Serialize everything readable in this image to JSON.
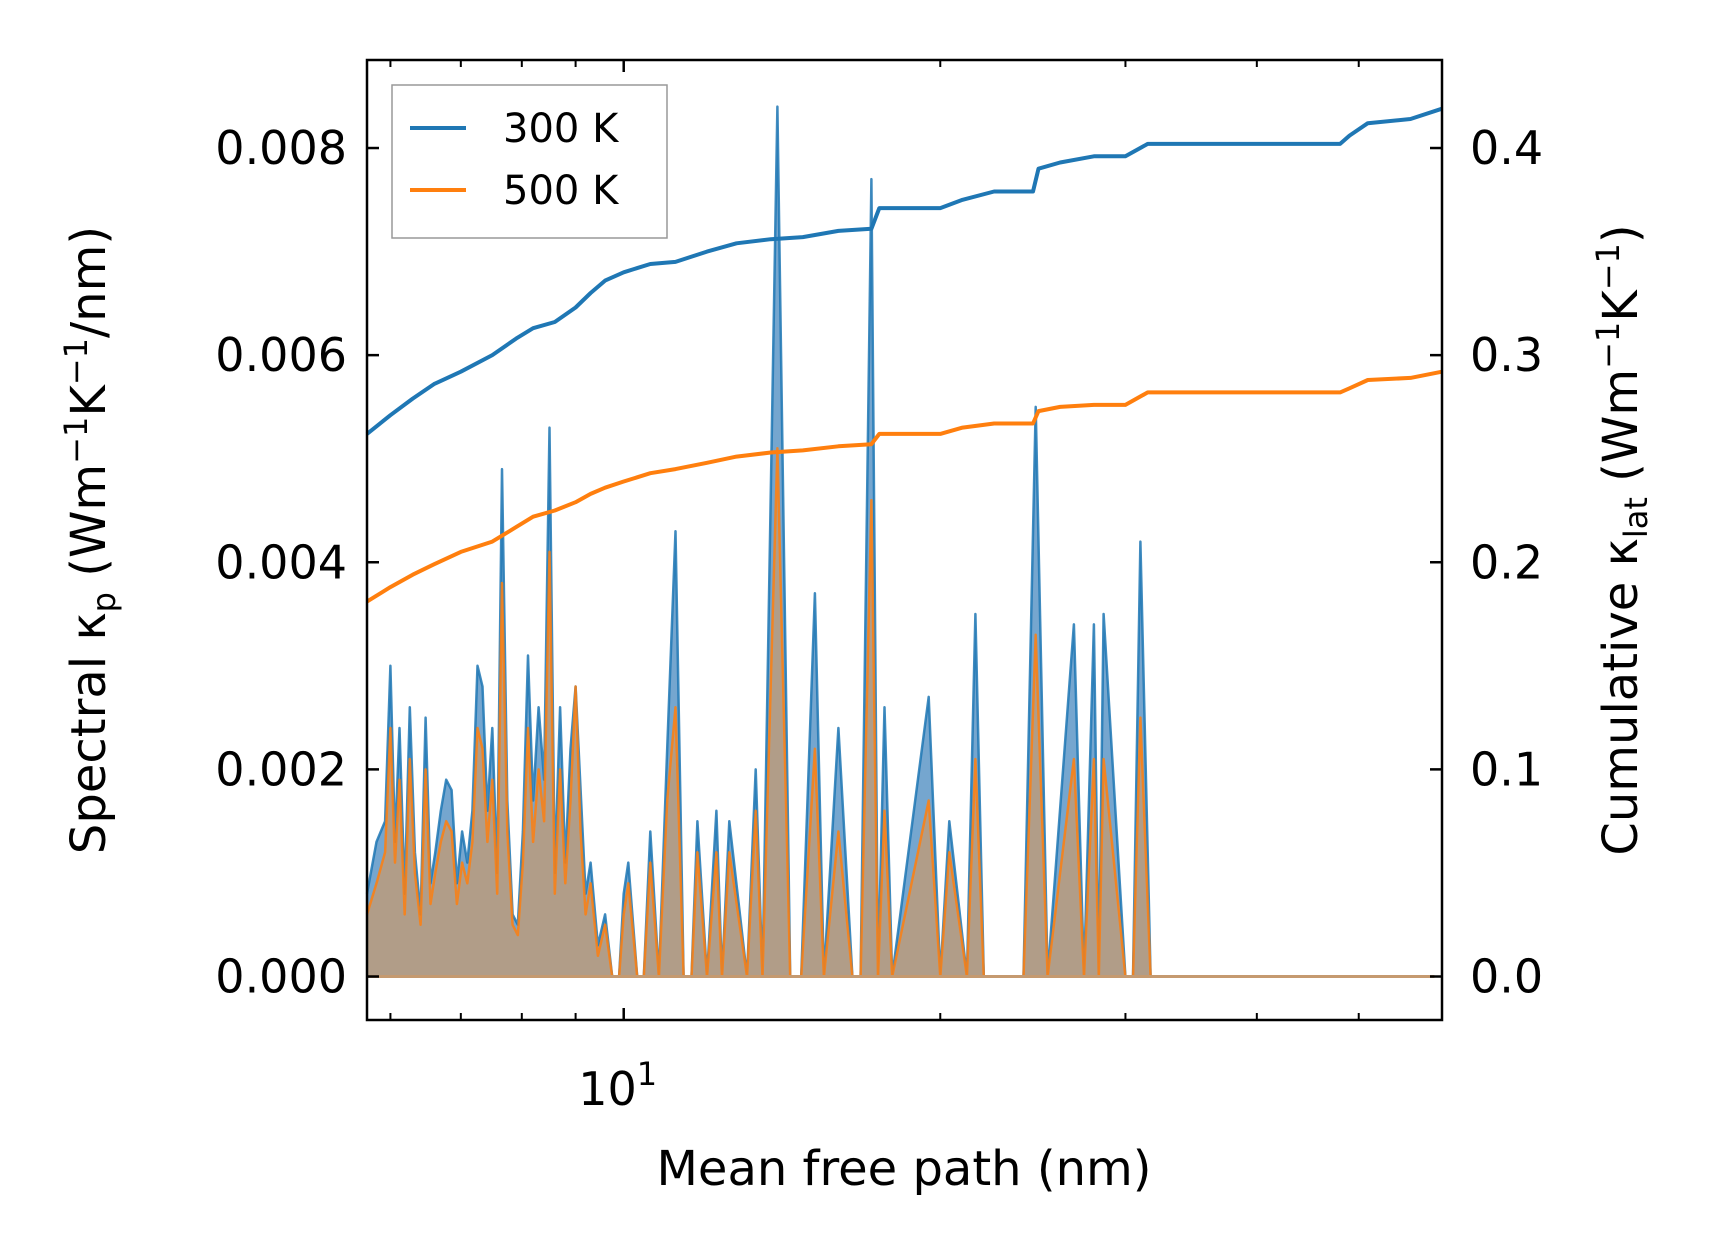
{
  "chart_data": {
    "type": "line",
    "xscale": "log",
    "x_range": [
      5.7,
      60
    ],
    "xlabel": "Mean free path (nm)",
    "x_major_ticks": [
      {
        "value": 10,
        "label_base": "10",
        "label_exp": "1"
      }
    ],
    "x_minor_ticks": [
      6,
      7,
      8,
      9,
      20,
      30,
      40,
      50,
      60
    ],
    "left_axis": {
      "ylabel_parts": [
        "Spectral κ",
        "p",
        " (Wm",
        "−1",
        "K",
        "−1",
        "/nm)"
      ],
      "ylim": [
        -0.00042,
        0.00885
      ],
      "ticks": [
        0,
        0.002,
        0.004,
        0.006,
        0.008
      ],
      "tick_labels": [
        "0.000",
        "0.002",
        "0.004",
        "0.006",
        "0.008"
      ]
    },
    "right_axis": {
      "ylabel_parts": [
        "Cumulative κ",
        "lat",
        " (Wm",
        "−1",
        "K",
        "−1",
        ")"
      ],
      "ylim": [
        -0.021,
        0.4425
      ],
      "ticks": [
        0,
        0.1,
        0.2,
        0.3,
        0.4
      ],
      "tick_labels": [
        "0.0",
        "0.1",
        "0.2",
        "0.3",
        "0.4"
      ]
    },
    "legend": {
      "position": "top-left",
      "entries": [
        "300 K",
        "500 K"
      ]
    },
    "series": [
      {
        "name": "300 K",
        "color": "#1f77b4",
        "fill_color": "#75a6cf",
        "cumulative": {
          "x": [
            5.7,
            6.0,
            6.3,
            6.6,
            7.0,
            7.5,
            7.9,
            8.2,
            8.6,
            9.0,
            9.3,
            9.6,
            10.0,
            10.6,
            11.2,
            12.0,
            12.8,
            13.8,
            14.8,
            16.0,
            17.2,
            17.5,
            20.0,
            21.0,
            22.5,
            24.5,
            24.8,
            26.0,
            28.0,
            30.0,
            31.5,
            35.0,
            48.0,
            49.0,
            51.0,
            56.0,
            60.0
          ],
          "y": [
            0.262,
            0.271,
            0.279,
            0.286,
            0.292,
            0.3,
            0.308,
            0.313,
            0.316,
            0.323,
            0.33,
            0.336,
            0.34,
            0.344,
            0.345,
            0.35,
            0.354,
            0.356,
            0.357,
            0.36,
            0.361,
            0.371,
            0.371,
            0.375,
            0.379,
            0.379,
            0.39,
            0.393,
            0.396,
            0.396,
            0.402,
            0.402,
            0.402,
            0.406,
            0.412,
            0.414,
            0.419
          ]
        },
        "spectral": {
          "x": [
            5.7,
            5.82,
            5.93,
            6.0,
            6.06,
            6.12,
            6.19,
            6.26,
            6.33,
            6.41,
            6.48,
            6.55,
            6.62,
            6.7,
            6.78,
            6.86,
            6.94,
            7.02,
            7.1,
            7.18,
            7.26,
            7.34,
            7.42,
            7.5,
            7.58,
            7.66,
            7.75,
            7.84,
            7.93,
            8.02,
            8.11,
            8.2,
            8.3,
            8.4,
            8.5,
            8.6,
            8.7,
            8.8,
            8.9,
            9.0,
            9.1,
            9.2,
            9.3,
            9.45,
            9.6,
            9.75,
            9.9,
            10.0,
            10.1,
            10.3,
            10.45,
            10.6,
            10.8,
            11.0,
            11.2,
            11.4,
            11.6,
            11.75,
            12.0,
            12.25,
            12.4,
            12.6,
            13.1,
            13.35,
            13.55,
            14.0,
            14.4,
            14.75,
            15.2,
            15.5,
            16.0,
            16.5,
            16.8,
            17.2,
            17.45,
            17.7,
            18.0,
            19.5,
            20.0,
            20.4,
            21.2,
            21.6,
            22.0,
            24.0,
            24.65,
            25.3,
            26.8,
            27.4,
            28.0,
            28.3,
            28.6,
            30.0,
            30.5,
            31.0,
            31.7,
            32.3,
            46.8,
            47.4,
            47.9,
            48.6,
            49.0,
            49.5,
            50.0,
            50.4,
            51.2,
            57.0,
            58.0,
            59.0
          ],
          "y": [
            0.0008,
            0.0013,
            0.0015,
            0.003,
            0.0013,
            0.0024,
            0.0008,
            0.0026,
            0.0012,
            0.0006,
            0.0025,
            0.0009,
            0.0012,
            0.0016,
            0.0019,
            0.0018,
            0.0009,
            0.0014,
            0.0011,
            0.0016,
            0.003,
            0.0028,
            0.0016,
            0.0024,
            0.001,
            0.0049,
            0.0017,
            0.0006,
            0.0005,
            0.0014,
            0.0031,
            0.0017,
            0.0026,
            0.0019,
            0.0053,
            0.001,
            0.0026,
            0.0011,
            0.0022,
            0.0028,
            0.0018,
            0.0008,
            0.0011,
            0.0003,
            0.0006,
            0.0,
            0.0,
            0.0008,
            0.0011,
            0.0,
            0.0,
            0.0014,
            0.0,
            0.0022,
            0.0043,
            0.0,
            0.0,
            0.0015,
            0.0,
            0.0016,
            0.0,
            0.0015,
            0.0,
            0.002,
            0.0,
            0.0084,
            0.0,
            0.0,
            0.0037,
            0.0,
            0.0024,
            0.0,
            0.0,
            0.0077,
            0.0,
            0.0026,
            0.0,
            0.0027,
            0.0,
            0.0015,
            0.0,
            0.0035,
            0.0,
            0.0,
            0.0055,
            0.0,
            0.0034,
            0.0,
            0.0034,
            0.0,
            0.0035,
            0.0,
            0.0,
            0.0042,
            0.0,
            0.0,
            0.0,
            0.0,
            0.0,
            0.0,
            0.0,
            0.0,
            0.0,
            0.0,
            0.0,
            0.0,
            0.0,
            0.0
          ]
        }
      },
      {
        "name": "500 K",
        "color": "#ff7f0e",
        "fill_color": "#c59a70",
        "cumulative": {
          "x": [
            5.7,
            6.0,
            6.3,
            6.6,
            7.0,
            7.5,
            7.9,
            8.2,
            8.6,
            9.0,
            9.3,
            9.6,
            10.0,
            10.6,
            11.2,
            12.0,
            12.8,
            13.8,
            14.8,
            16.0,
            17.2,
            17.5,
            20.0,
            21.0,
            22.5,
            24.5,
            24.8,
            26.0,
            28.0,
            30.0,
            31.5,
            35.0,
            48.0,
            49.0,
            51.0,
            56.0,
            60.0
          ],
          "y": [
            0.181,
            0.188,
            0.194,
            0.199,
            0.205,
            0.21,
            0.217,
            0.222,
            0.225,
            0.229,
            0.233,
            0.236,
            0.239,
            0.243,
            0.245,
            0.248,
            0.251,
            0.253,
            0.254,
            0.256,
            0.257,
            0.262,
            0.262,
            0.265,
            0.267,
            0.267,
            0.273,
            0.275,
            0.276,
            0.276,
            0.282,
            0.282,
            0.282,
            0.284,
            0.288,
            0.289,
            0.292
          ]
        },
        "spectral": {
          "x": [
            5.7,
            5.82,
            5.93,
            6.0,
            6.06,
            6.12,
            6.19,
            6.26,
            6.33,
            6.41,
            6.48,
            6.55,
            6.62,
            6.7,
            6.78,
            6.86,
            6.94,
            7.02,
            7.1,
            7.18,
            7.26,
            7.34,
            7.42,
            7.5,
            7.58,
            7.66,
            7.75,
            7.84,
            7.93,
            8.02,
            8.11,
            8.2,
            8.3,
            8.4,
            8.5,
            8.6,
            8.7,
            8.8,
            8.9,
            9.0,
            9.1,
            9.2,
            9.3,
            9.45,
            9.6,
            9.75,
            9.9,
            10.0,
            10.1,
            10.3,
            10.45,
            10.6,
            10.8,
            11.0,
            11.2,
            11.4,
            11.6,
            11.75,
            12.0,
            12.25,
            12.4,
            12.6,
            13.1,
            13.35,
            13.55,
            14.0,
            14.4,
            14.75,
            15.2,
            15.5,
            16.0,
            16.5,
            16.8,
            17.2,
            17.45,
            17.7,
            18.0,
            19.5,
            20.0,
            20.4,
            21.2,
            21.6,
            22.0,
            24.0,
            24.65,
            25.3,
            26.8,
            27.4,
            28.0,
            28.3,
            28.6,
            30.0,
            30.5,
            31.0,
            31.7,
            32.3,
            46.8,
            47.4,
            47.9,
            48.6,
            49.0,
            49.5,
            50.0,
            50.4,
            51.2,
            57.0,
            58.0,
            59.0
          ],
          "y": [
            0.0006,
            0.0009,
            0.0012,
            0.0024,
            0.0011,
            0.0019,
            0.0006,
            0.0021,
            0.001,
            0.0005,
            0.002,
            0.0007,
            0.001,
            0.0013,
            0.0015,
            0.0014,
            0.0007,
            0.0011,
            0.0009,
            0.0013,
            0.0024,
            0.0022,
            0.0013,
            0.0019,
            0.0008,
            0.0038,
            0.0014,
            0.0005,
            0.0004,
            0.0011,
            0.0024,
            0.0013,
            0.002,
            0.0015,
            0.0041,
            0.0008,
            0.002,
            0.0009,
            0.0017,
            0.0028,
            0.0014,
            0.0006,
            0.0009,
            0.0002,
            0.0005,
            0.0,
            0.0,
            0.0006,
            0.0009,
            0.0,
            0.0,
            0.0011,
            0.0,
            0.0017,
            0.0026,
            0.0,
            0.0,
            0.0012,
            0.0,
            0.0012,
            0.0,
            0.0012,
            0.0,
            0.0016,
            0.0,
            0.0051,
            0.0,
            0.0,
            0.0022,
            0.0,
            0.0014,
            0.0,
            0.0,
            0.0046,
            0.0,
            0.0016,
            0.0,
            0.0017,
            0.0,
            0.0012,
            0.0,
            0.0021,
            0.0,
            0.0,
            0.0033,
            0.0,
            0.0021,
            0.0,
            0.0021,
            0.0,
            0.0021,
            0.0,
            0.0,
            0.0025,
            0.0,
            0.0,
            0.0,
            0.0,
            0.0,
            0.0,
            0.0,
            0.0,
            0.0,
            0.0,
            0.0,
            0.0,
            0.0,
            0.0
          ]
        }
      }
    ]
  }
}
